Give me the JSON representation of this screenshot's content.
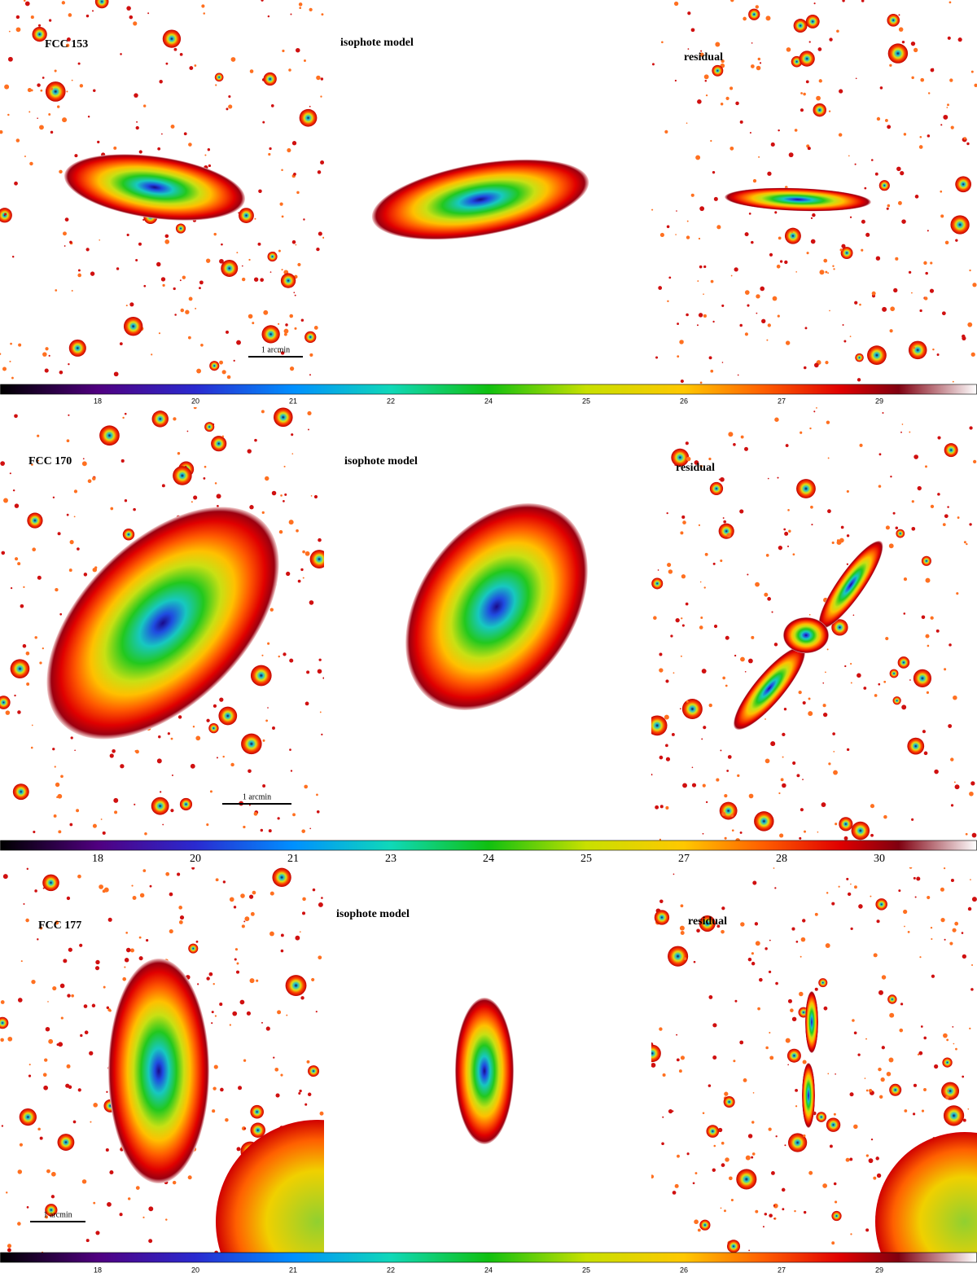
{
  "rows": [
    {
      "galaxy": "FCC 153",
      "model_label": "isophote model",
      "residual_label": "residual",
      "scale_bar": "1 arcmin",
      "colorbar_ticks": [
        "18",
        "20",
        "21",
        "22",
        "24",
        "25",
        "26",
        "27",
        "29"
      ]
    },
    {
      "galaxy": "FCC 170",
      "model_label": "isophote model",
      "residual_label": "residual",
      "scale_bar": "1 arcmin",
      "colorbar_ticks": [
        "18",
        "20",
        "21",
        "23",
        "24",
        "25",
        "27",
        "28",
        "30"
      ]
    },
    {
      "galaxy": "FCC 177",
      "model_label": "isophote model",
      "residual_label": "residual",
      "scale_bar": "1 arcmin",
      "colorbar_ticks": [
        "18",
        "20",
        "21",
        "22",
        "24",
        "25",
        "26",
        "27",
        "29"
      ]
    }
  ]
}
